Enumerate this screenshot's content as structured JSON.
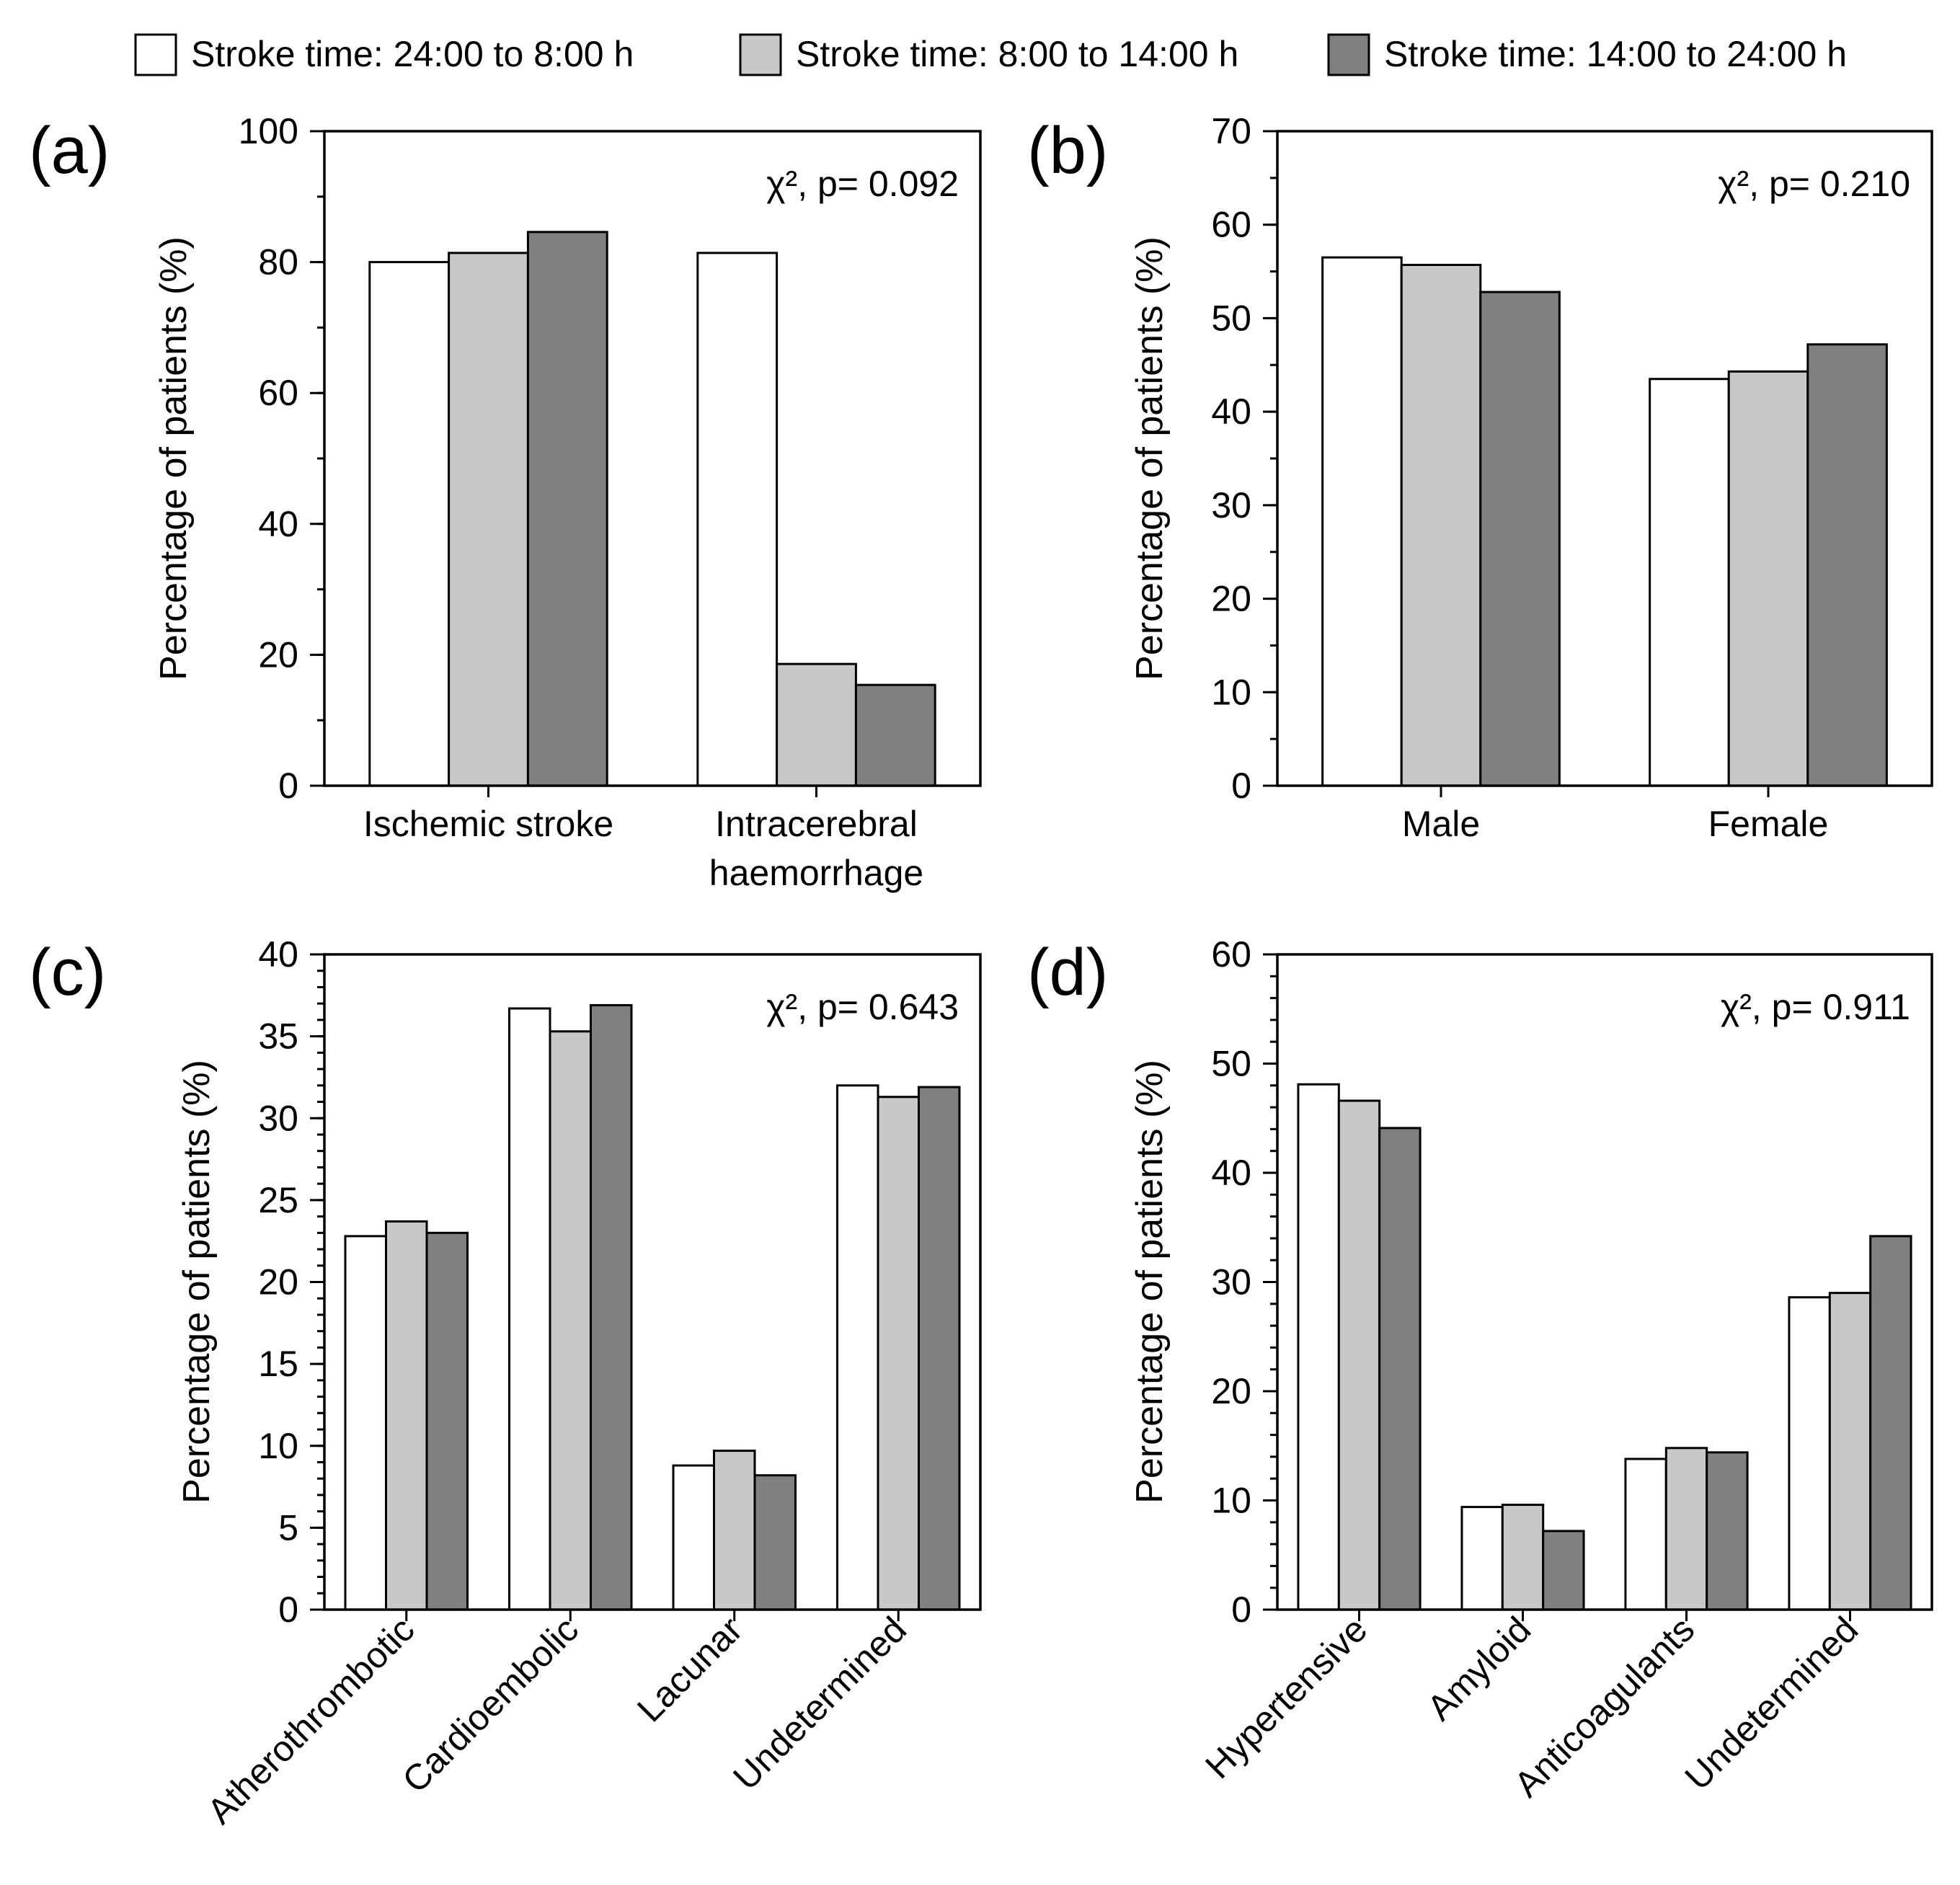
{
  "legend": {
    "entries": [
      {
        "label": "Stroke time: 24:00 to 8:00 h",
        "color": "#ffffff"
      },
      {
        "label": "Stroke time: 8:00 to 14:00 h",
        "color": "#c8c8c8"
      },
      {
        "label": "Stroke time: 14:00 to 24:00 h",
        "color": "#808080"
      }
    ]
  },
  "chart_data": [
    {
      "type": "bar",
      "panel_label": "(a)",
      "annotation": "χ², p= 0.092",
      "ylabel": "Percentage of patients (%)",
      "ylim": [
        0,
        100
      ],
      "yticks": [
        0,
        20,
        40,
        60,
        80,
        100
      ],
      "categories": [
        "Ischemic stroke",
        "Intracerebral haemorrhage"
      ],
      "category_lines": [
        [
          "Ischemic stroke"
        ],
        [
          "Intracerebral",
          "haemorrhage"
        ]
      ],
      "series": [
        {
          "values": [
            80.0,
            81.4
          ]
        },
        {
          "values": [
            81.4,
            18.6
          ]
        },
        {
          "values": [
            84.6,
            15.4
          ]
        }
      ]
    },
    {
      "type": "bar",
      "panel_label": "(b)",
      "annotation": "χ², p= 0.210",
      "ylabel": "Percentage of patients (%)",
      "ylim": [
        0,
        70
      ],
      "yticks": [
        0,
        10,
        20,
        30,
        40,
        50,
        60,
        70
      ],
      "categories": [
        "Male",
        "Female"
      ],
      "category_lines": [
        [
          "Male"
        ],
        [
          "Female"
        ]
      ],
      "series": [
        {
          "values": [
            56.5,
            43.5
          ]
        },
        {
          "values": [
            55.7,
            44.3
          ]
        },
        {
          "values": [
            52.8,
            47.2
          ]
        }
      ]
    },
    {
      "type": "bar",
      "panel_label": "(c)",
      "annotation": "χ², p= 0.643",
      "ylabel": "Percentage of patients (%)",
      "ylim": [
        0,
        40
      ],
      "yticks": [
        0,
        5,
        10,
        15,
        20,
        25,
        30,
        35,
        40
      ],
      "categories": [
        "Atherothrombotic",
        "Cardioembolic",
        "Lacunar",
        "Undetermined"
      ],
      "rotated_labels": true,
      "series": [
        {
          "values": [
            22.8,
            36.7,
            8.8,
            32.0
          ]
        },
        {
          "values": [
            23.7,
            35.3,
            9.7,
            31.3
          ]
        },
        {
          "values": [
            23.0,
            36.9,
            8.2,
            31.9
          ]
        }
      ]
    },
    {
      "type": "bar",
      "panel_label": "(d)",
      "annotation": "χ², p= 0.911",
      "ylabel": "Percentage of patients (%)",
      "ylim": [
        0,
        60
      ],
      "yticks": [
        0,
        10,
        20,
        30,
        40,
        50,
        60
      ],
      "categories": [
        "Hypertensive",
        "Amyloid",
        "Anticoagulants",
        "Undetermined"
      ],
      "rotated_labels": true,
      "series": [
        {
          "values": [
            48.1,
            9.4,
            13.8,
            28.6
          ]
        },
        {
          "values": [
            46.6,
            9.6,
            14.8,
            29.0
          ]
        },
        {
          "values": [
            44.1,
            7.2,
            14.4,
            34.2
          ]
        }
      ]
    }
  ]
}
